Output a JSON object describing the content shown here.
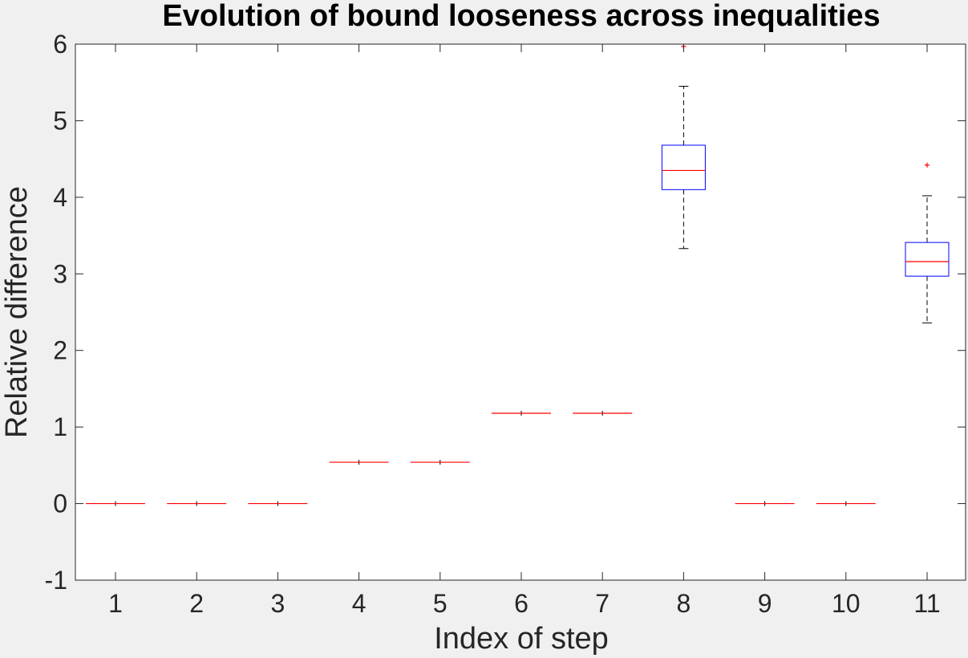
{
  "chart_data": {
    "type": "box",
    "title": "Evolution of bound looseness across inequalities",
    "xlabel": "Index of step",
    "ylabel": "Relative difference",
    "ylim": [
      -1,
      6
    ],
    "yticks": [
      "-1",
      "0",
      "1",
      "2",
      "3",
      "4",
      "5",
      "6"
    ],
    "categories": [
      "1",
      "2",
      "3",
      "4",
      "5",
      "6",
      "7",
      "8",
      "9",
      "10",
      "11"
    ],
    "boxes": [
      {
        "category": "1",
        "whisker_low": 0.0,
        "q1": 0.0,
        "median": 0.0,
        "q3": 0.0,
        "whisker_high": 0.0,
        "outliers": []
      },
      {
        "category": "2",
        "whisker_low": 0.0,
        "q1": 0.0,
        "median": 0.0,
        "q3": 0.0,
        "whisker_high": 0.0,
        "outliers": []
      },
      {
        "category": "3",
        "whisker_low": 0.0,
        "q1": 0.0,
        "median": 0.0,
        "q3": 0.0,
        "whisker_high": 0.0,
        "outliers": []
      },
      {
        "category": "4",
        "whisker_low": 0.54,
        "q1": 0.54,
        "median": 0.54,
        "q3": 0.54,
        "whisker_high": 0.54,
        "outliers": []
      },
      {
        "category": "5",
        "whisker_low": 0.54,
        "q1": 0.54,
        "median": 0.54,
        "q3": 0.54,
        "whisker_high": 0.54,
        "outliers": []
      },
      {
        "category": "6",
        "whisker_low": 1.18,
        "q1": 1.18,
        "median": 1.18,
        "q3": 1.18,
        "whisker_high": 1.18,
        "outliers": []
      },
      {
        "category": "7",
        "whisker_low": 1.18,
        "q1": 1.18,
        "median": 1.18,
        "q3": 1.18,
        "whisker_high": 1.18,
        "outliers": []
      },
      {
        "category": "8",
        "whisker_low": 3.33,
        "q1": 4.1,
        "median": 4.35,
        "q3": 4.68,
        "whisker_high": 5.45,
        "outliers": [
          5.97
        ]
      },
      {
        "category": "9",
        "whisker_low": 0.0,
        "q1": 0.0,
        "median": 0.0,
        "q3": 0.0,
        "whisker_high": 0.0,
        "outliers": []
      },
      {
        "category": "10",
        "whisker_low": 0.0,
        "q1": 0.0,
        "median": 0.0,
        "q3": 0.0,
        "whisker_high": 0.0,
        "outliers": []
      },
      {
        "category": "11",
        "whisker_low": 2.36,
        "q1": 2.97,
        "median": 3.16,
        "q3": 3.41,
        "whisker_high": 4.02,
        "outliers": [
          4.42
        ]
      }
    ],
    "grid": false,
    "colors": {
      "box": "#0000ff",
      "median": "#ff0000",
      "whisker": "#000000",
      "outlier": "#ff0000",
      "axes": "#262626",
      "plot_background": "#ffffff",
      "figure_background": "#f0f0f0"
    }
  }
}
